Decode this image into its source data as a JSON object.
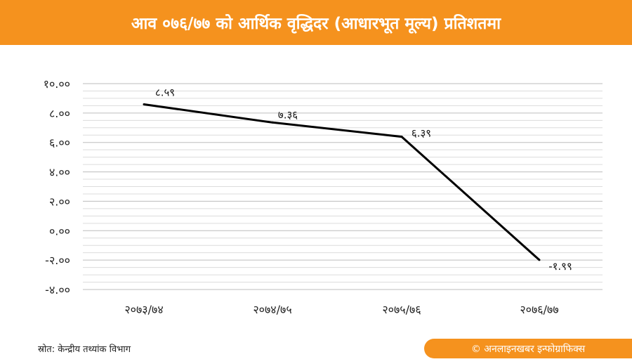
{
  "header": {
    "title": "आव ०७६/७७ को आर्थिक वृद्धिदर (आधारभूत मूल्य) प्रतिशतमा"
  },
  "footer": {
    "source": "स्रोत: केन्द्रीय तथ्यांक विभाग",
    "credit": "© अनलाइनखबर इन्फोग्राफिक्स"
  },
  "colors": {
    "accent": "#f5921e",
    "line": "#000000",
    "grid": "#c8c8c8"
  },
  "chart_data": {
    "type": "line",
    "title": "आव ०७६/७७ को आर्थिक वृद्धिदर (आधारभूत मूल्य) प्रतिशतमा",
    "categories": [
      "२०७३/७४",
      "२०७४/७५",
      "२०७५/७६",
      "२०७६/७७"
    ],
    "values": [
      8.59,
      7.36,
      6.39,
      -1.99
    ],
    "data_labels": [
      "८.५९",
      "७.३६",
      "६.३९",
      "-१.९९"
    ],
    "ylim": [
      -4,
      10
    ],
    "yticks": [
      10,
      8,
      6,
      4,
      2,
      0,
      -2,
      -4
    ],
    "ytick_labels": [
      "१०.००",
      "८.००",
      "६.००",
      "४.००",
      "२.००",
      "०.००",
      "-२.००",
      "-४.००"
    ],
    "grid": true,
    "xlabel": "",
    "ylabel": ""
  }
}
